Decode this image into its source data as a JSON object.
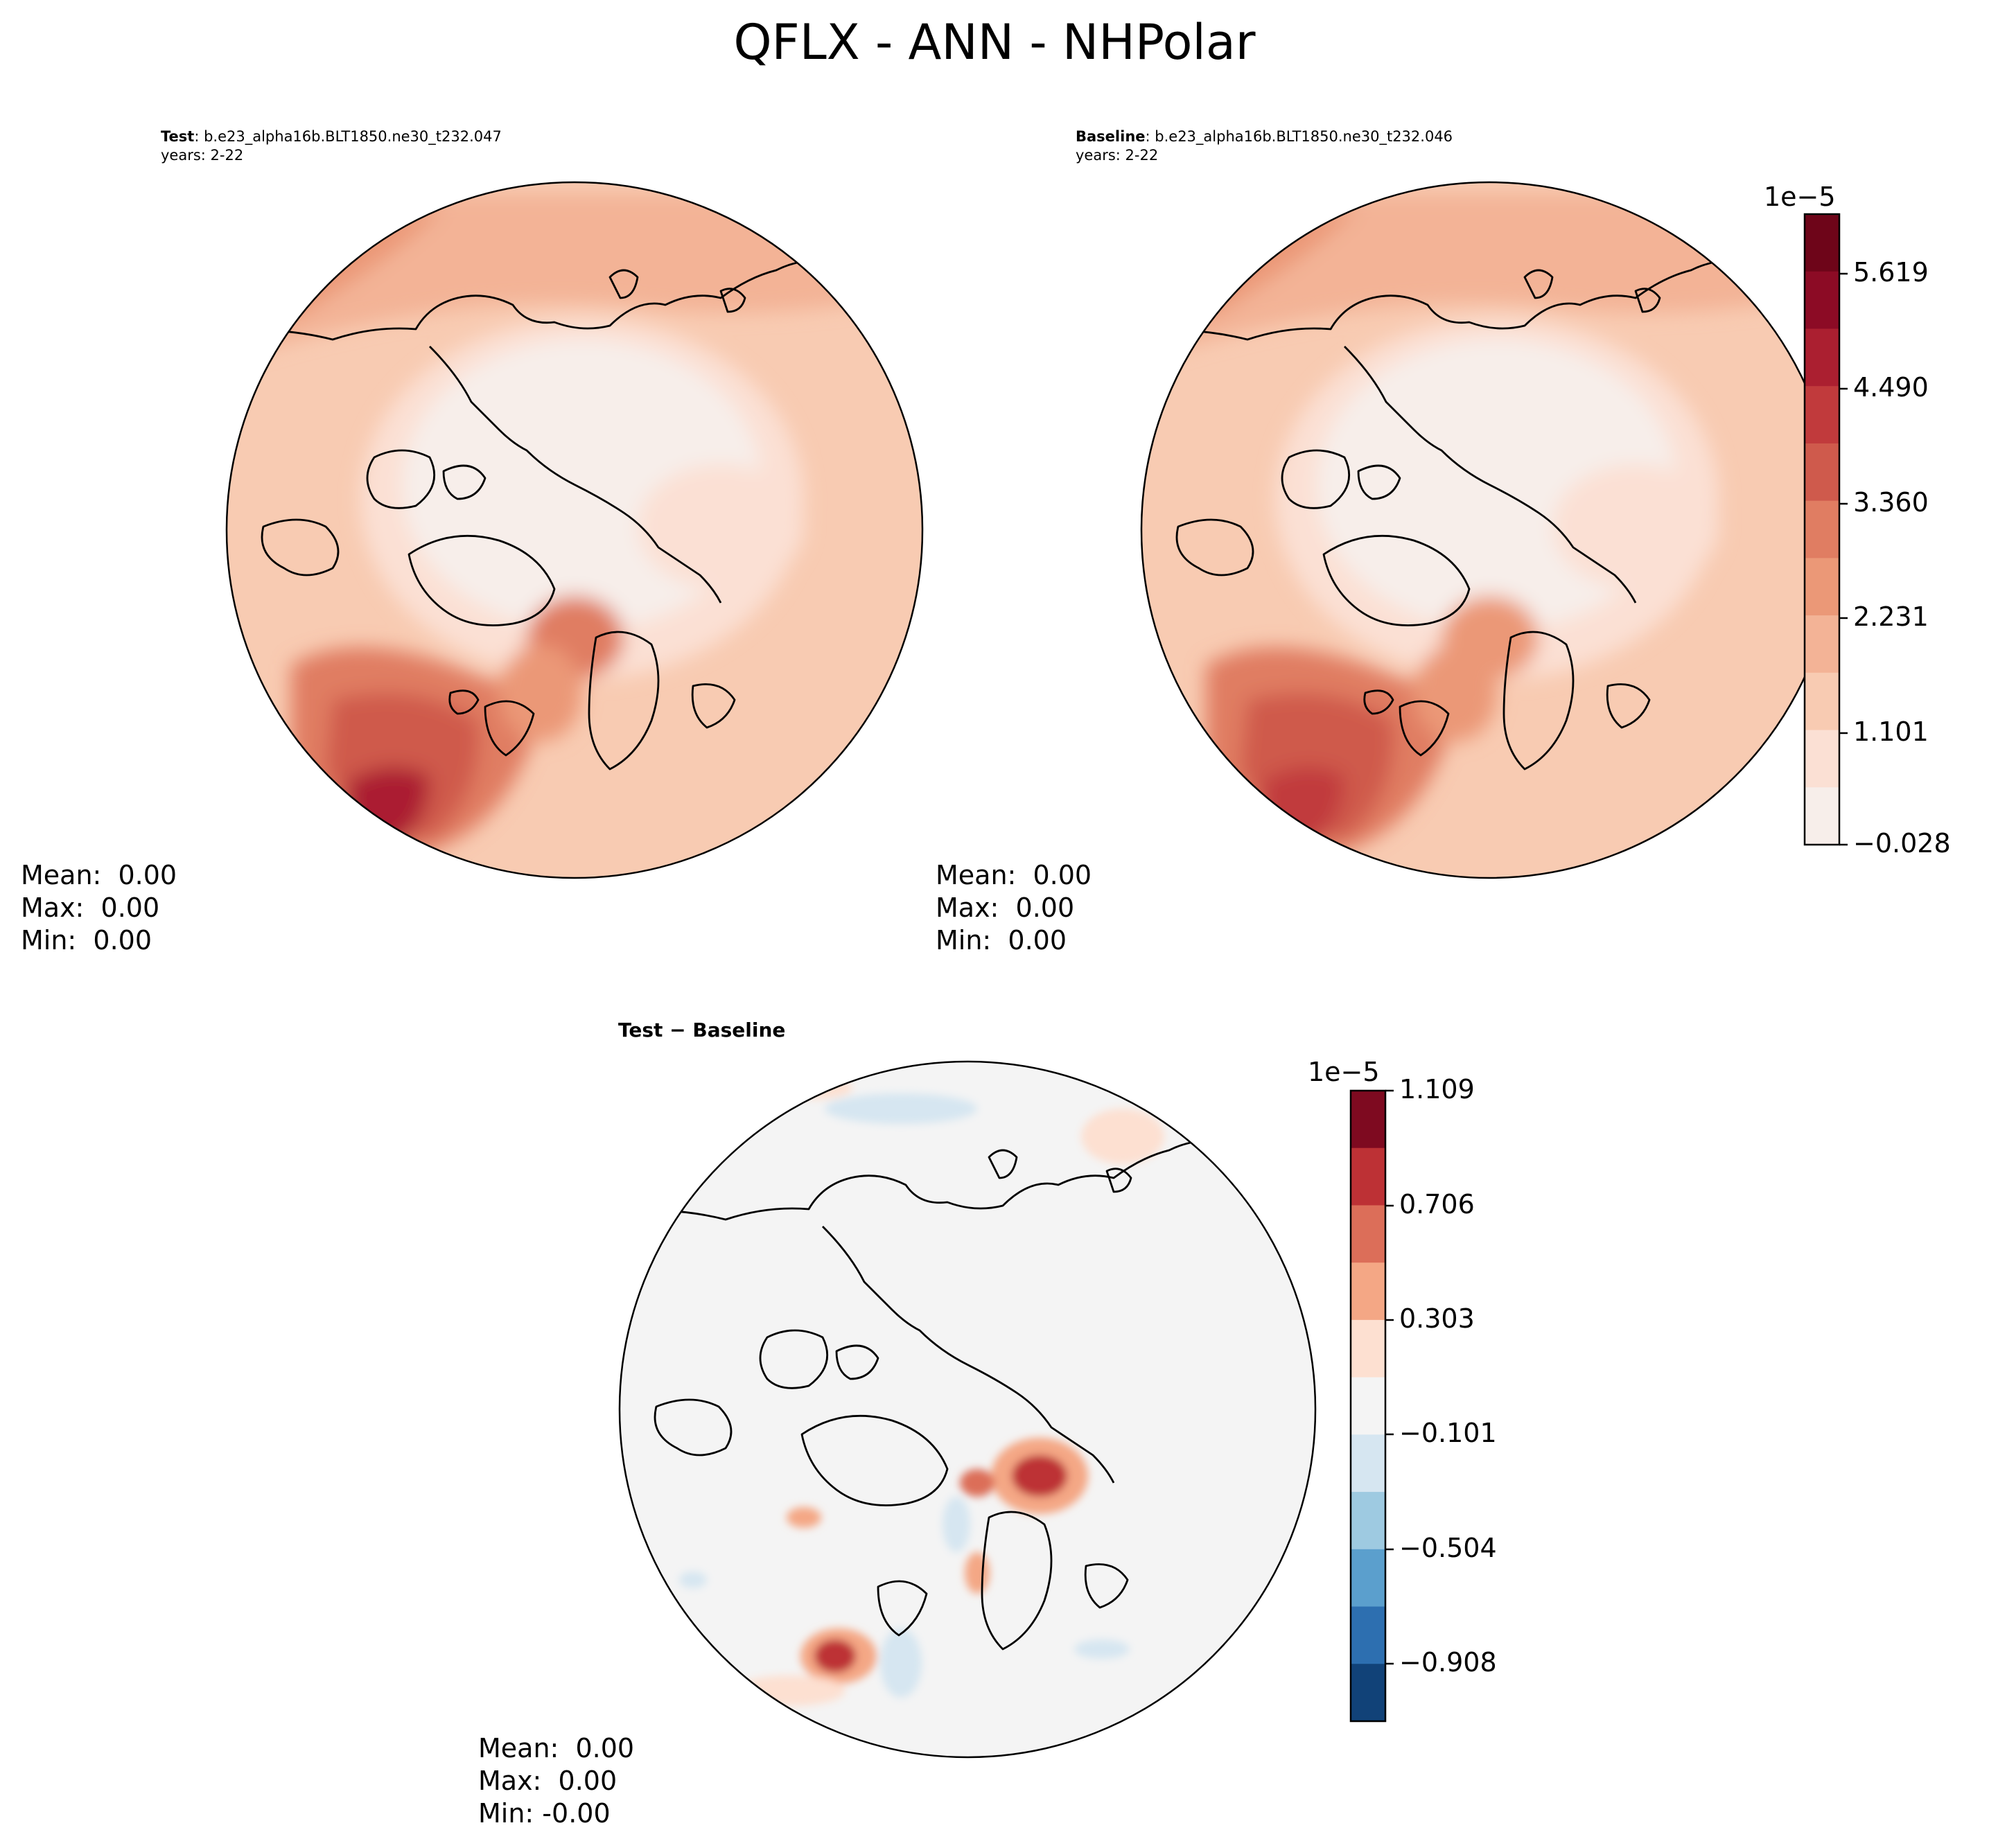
{
  "figure": {
    "title": "QFLX - ANN - NHPolar"
  },
  "panels": {
    "test": {
      "label": "Test",
      "case": ": b.e23_alpha16b.BLT1850.ne30_t232.047",
      "years": "years: 2-22",
      "stats": {
        "mean": "Mean:  0.00",
        "max": "Max:  0.00",
        "min": "Min:  0.00"
      }
    },
    "baseline": {
      "label": "Baseline",
      "case": ": b.e23_alpha16b.BLT1850.ne30_t232.046",
      "years": "years: 2-22",
      "stats": {
        "mean": "Mean:  0.00",
        "max": "Max:  0.00",
        "min": "Min:  0.00"
      }
    },
    "diff": {
      "title_a": "Test",
      "title_sep": " − ",
      "title_b": "Baseline",
      "stats": {
        "mean": "Mean:  0.00",
        "max": "Max:  0.00",
        "min": "Min: -0.00"
      }
    }
  },
  "chart_data": [
    {
      "type": "heatmap",
      "projection": "north polar stereographic",
      "title": "Test",
      "colormap": "RdBu_r (sequential reds)",
      "levels_exponent": "1e−5",
      "colorbar_ticks": [
        "−0.028",
        "1.101",
        "2.231",
        "3.360",
        "4.490",
        "5.619"
      ],
      "range": [
        -0.028,
        6.0
      ]
    },
    {
      "type": "heatmap",
      "projection": "north polar stereographic",
      "title": "Baseline",
      "colormap": "RdBu_r (sequential reds)",
      "levels_exponent": "1e−5",
      "colorbar_ticks": [
        "−0.028",
        "1.101",
        "2.231",
        "3.360",
        "4.490",
        "5.619"
      ],
      "range": [
        -0.028,
        6.0
      ]
    },
    {
      "type": "heatmap",
      "projection": "north polar stereographic",
      "title": "Test − Baseline",
      "colormap": "RdBu_r (diverging)",
      "levels_exponent": "1e−5",
      "colorbar_ticks": [
        "−0.908",
        "−0.504",
        "−0.101",
        "0.303",
        "0.706",
        "1.109"
      ],
      "range": [
        -1.109,
        1.109
      ]
    }
  ],
  "colorbars": {
    "main": {
      "exponent": "1e−5",
      "ticks": [
        "5.619",
        "4.490",
        "3.360",
        "2.231",
        "1.101",
        "−0.028"
      ],
      "colors": [
        "#f7eeea",
        "#fbe0d4",
        "#f8cbb2",
        "#f3b396",
        "#eb9877",
        "#e07d62",
        "#cf5a4c",
        "#c13a3c",
        "#ab1f30",
        "#8c0b25",
        "#6e0519"
      ]
    },
    "diff": {
      "exponent": "1e−5",
      "ticks": [
        "1.109",
        "0.706",
        "0.303",
        "−0.101",
        "−0.504",
        "−0.908"
      ],
      "colors": [
        "#7e0a20",
        "#bd3135",
        "#dc6e59",
        "#f4a785",
        "#fde0d1",
        "#f4f4f4",
        "#d6e6f1",
        "#9ecae1",
        "#5b9fcd",
        "#2d6fb0",
        "#114278"
      ]
    }
  }
}
